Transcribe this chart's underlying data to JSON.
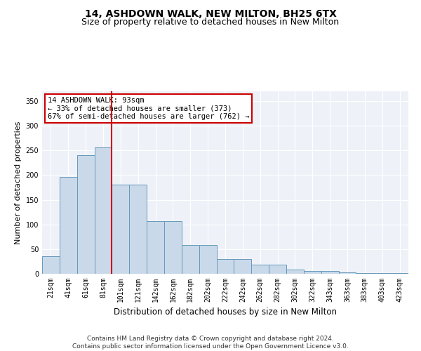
{
  "title1": "14, ASHDOWN WALK, NEW MILTON, BH25 6TX",
  "title2": "Size of property relative to detached houses in New Milton",
  "xlabel": "Distribution of detached houses by size in New Milton",
  "ylabel": "Number of detached properties",
  "categories": [
    "21sqm",
    "41sqm",
    "61sqm",
    "81sqm",
    "101sqm",
    "121sqm",
    "142sqm",
    "162sqm",
    "182sqm",
    "202sqm",
    "222sqm",
    "242sqm",
    "262sqm",
    "282sqm",
    "302sqm",
    "322sqm",
    "343sqm",
    "363sqm",
    "383sqm",
    "403sqm",
    "423sqm"
  ],
  "values": [
    35,
    197,
    240,
    256,
    181,
    181,
    107,
    107,
    58,
    58,
    30,
    30,
    18,
    18,
    9,
    6,
    6,
    3,
    1,
    1,
    2
  ],
  "bar_color": "#c9d9ea",
  "bar_edge_color": "#6699bb",
  "annotation_line1": "14 ASHDOWN WALK: 93sqm",
  "annotation_line2": "← 33% of detached houses are smaller (373)",
  "annotation_line3": "67% of semi-detached houses are larger (762) →",
  "vline_color": "#cc0000",
  "vline_x": 3.5,
  "ylim": [
    0,
    370
  ],
  "yticks": [
    0,
    50,
    100,
    150,
    200,
    250,
    300,
    350
  ],
  "background_color": "#eef2f8",
  "annotation_box_facecolor": "#ffffff",
  "annotation_box_edgecolor": "#cc0000",
  "footer1": "Contains HM Land Registry data © Crown copyright and database right 2024.",
  "footer2": "Contains public sector information licensed under the Open Government Licence v3.0.",
  "title1_fontsize": 10,
  "title2_fontsize": 9,
  "xlabel_fontsize": 8.5,
  "ylabel_fontsize": 8,
  "tick_fontsize": 7,
  "footer_fontsize": 6.5,
  "annot_fontsize": 7.5
}
